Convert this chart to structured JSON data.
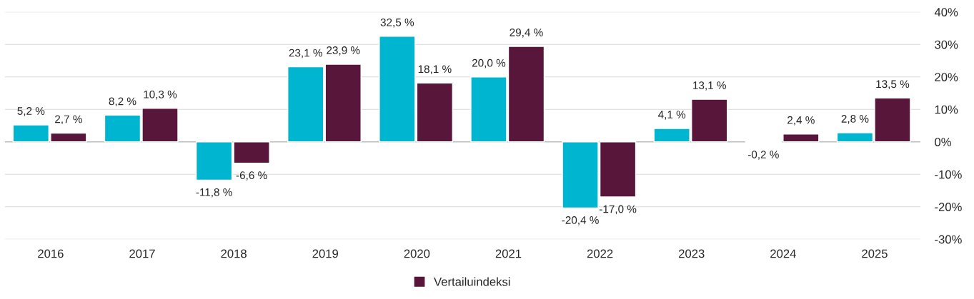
{
  "chart_data": {
    "type": "bar",
    "categories": [
      "2016",
      "2017",
      "2018",
      "2019",
      "2020",
      "2021",
      "2022",
      "2023",
      "2024",
      "2025"
    ],
    "series": [
      {
        "color": "#00b5d0",
        "values": [
          5.2,
          8.2,
          -11.8,
          23.1,
          32.5,
          20.0,
          -20.4,
          4.1,
          -0.2,
          2.8
        ],
        "value_labels": [
          "5,2 %",
          "8,2 %",
          "-11,8 %",
          "23,1 %",
          "32,5 %",
          "20,0 %",
          "-20,4 %",
          "4,1 %",
          "-0,2 %",
          "2,8 %"
        ]
      },
      {
        "name": "Vertailuindeksi",
        "color": "#58163b",
        "values": [
          2.7,
          10.3,
          -6.6,
          23.9,
          18.1,
          29.4,
          -17.0,
          13.1,
          2.4,
          13.5
        ],
        "value_labels": [
          "2,7 %",
          "10,3 %",
          "-6,6 %",
          "23,9 %",
          "18,1 %",
          "29,4 %",
          "-17,0 %",
          "13,1 %",
          "2,4 %",
          "13,5 %"
        ]
      }
    ],
    "ylim": [
      -30,
      40
    ],
    "yticks": [
      {
        "value": -30,
        "label": "-30%"
      },
      {
        "value": -20,
        "label": "-20%"
      },
      {
        "value": -10,
        "label": "-10%"
      },
      {
        "value": 0,
        "label": "0%"
      },
      {
        "value": 10,
        "label": "10%"
      },
      {
        "value": 20,
        "label": "20%"
      },
      {
        "value": 30,
        "label": "30%"
      },
      {
        "value": 40,
        "label": "40%"
      }
    ],
    "grid": "y",
    "legend": "bottom"
  }
}
